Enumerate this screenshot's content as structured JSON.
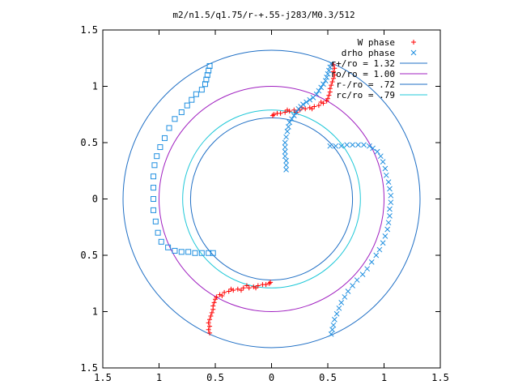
{
  "chart_data": {
    "type": "scatter",
    "title": "m2/n1.5/q1.75/r-+.55-j283/M0.3/512",
    "xlim": [
      -1.5,
      1.5
    ],
    "ylim": [
      -1.5,
      1.5
    ],
    "x_ticks": [
      -1.5,
      -1,
      -0.5,
      0,
      0.5,
      1,
      1.5
    ],
    "y_ticks": [
      -1.5,
      -1,
      -0.5,
      0,
      0.5,
      1,
      1.5
    ],
    "x_tick_labels": [
      "1.5",
      "1",
      "0.5",
      "0",
      "0.5",
      "1",
      "1.5"
    ],
    "y_tick_labels": [
      "1.5",
      "1",
      "0.5",
      "0",
      "0.5",
      "1",
      "1.5"
    ],
    "grid": false,
    "legend_position": "top-right",
    "circles": [
      {
        "label": "r+/ro = 1.32",
        "radius": 1.32,
        "color": "#1f6fc5"
      },
      {
        "label": "ro/ro = 1.00",
        "radius": 1.0,
        "color": "#a020c0"
      },
      {
        "label": "r-/ro = .72",
        "radius": 0.72,
        "color": "#1f6fc5"
      },
      {
        "label": "rc/ro = .79",
        "radius": 0.79,
        "color": "#20c8d8"
      }
    ],
    "series": [
      {
        "name": "W phase",
        "marker": "plus",
        "color": "#ff0000",
        "points": [
          [
            0.55,
            1.19
          ],
          [
            0.56,
            1.16
          ],
          [
            0.55,
            1.13
          ],
          [
            0.56,
            1.1
          ],
          [
            0.55,
            1.07
          ],
          [
            0.54,
            1.04
          ],
          [
            0.53,
            1.01
          ],
          [
            0.52,
            0.98
          ],
          [
            0.52,
            0.95
          ],
          [
            0.51,
            0.92
          ],
          [
            0.5,
            0.89
          ],
          [
            0.49,
            0.87
          ],
          [
            0.46,
            0.85
          ],
          [
            0.42,
            0.83
          ],
          [
            0.38,
            0.82
          ],
          [
            0.34,
            0.81
          ],
          [
            0.3,
            0.8
          ],
          [
            0.25,
            0.79
          ],
          [
            0.2,
            0.79
          ],
          [
            0.16,
            0.78
          ],
          [
            0.12,
            0.77
          ],
          [
            0.08,
            0.76
          ],
          [
            0.05,
            0.76
          ],
          [
            0.02,
            0.75
          ],
          [
            0.01,
            0.74
          ],
          [
            0.44,
            0.86
          ],
          [
            0.36,
            0.8
          ],
          [
            0.27,
            0.81
          ],
          [
            0.22,
            0.77
          ],
          [
            0.14,
            0.79
          ],
          [
            -0.55,
            -1.19
          ],
          [
            -0.56,
            -1.16
          ],
          [
            -0.55,
            -1.13
          ],
          [
            -0.56,
            -1.1
          ],
          [
            -0.55,
            -1.07
          ],
          [
            -0.54,
            -1.04
          ],
          [
            -0.53,
            -1.01
          ],
          [
            -0.52,
            -0.98
          ],
          [
            -0.52,
            -0.95
          ],
          [
            -0.51,
            -0.92
          ],
          [
            -0.5,
            -0.89
          ],
          [
            -0.49,
            -0.87
          ],
          [
            -0.46,
            -0.85
          ],
          [
            -0.42,
            -0.83
          ],
          [
            -0.38,
            -0.82
          ],
          [
            -0.34,
            -0.81
          ],
          [
            -0.3,
            -0.8
          ],
          [
            -0.25,
            -0.79
          ],
          [
            -0.2,
            -0.79
          ],
          [
            -0.16,
            -0.78
          ],
          [
            -0.12,
            -0.77
          ],
          [
            -0.08,
            -0.76
          ],
          [
            -0.05,
            -0.76
          ],
          [
            -0.02,
            -0.75
          ],
          [
            -0.01,
            -0.74
          ],
          [
            -0.44,
            -0.86
          ],
          [
            -0.36,
            -0.8
          ],
          [
            -0.27,
            -0.81
          ],
          [
            -0.22,
            -0.77
          ],
          [
            -0.14,
            -0.79
          ]
        ]
      },
      {
        "name": "drho phase",
        "marker": "cross",
        "color": "#1f8fe0",
        "points": [
          [
            0.53,
            1.2
          ],
          [
            0.52,
            1.17
          ],
          [
            0.51,
            1.14
          ],
          [
            0.5,
            1.11
          ],
          [
            0.49,
            1.08
          ],
          [
            0.48,
            1.05
          ],
          [
            0.46,
            1.02
          ],
          [
            0.44,
            0.99
          ],
          [
            0.42,
            0.96
          ],
          [
            0.4,
            0.93
          ],
          [
            0.37,
            0.9
          ],
          [
            0.34,
            0.88
          ],
          [
            0.31,
            0.86
          ],
          [
            0.28,
            0.84
          ],
          [
            0.26,
            0.82
          ],
          [
            0.24,
            0.8
          ],
          [
            0.22,
            0.77
          ],
          [
            0.2,
            0.74
          ],
          [
            0.18,
            0.71
          ],
          [
            0.16,
            0.68
          ],
          [
            0.15,
            0.64
          ],
          [
            0.14,
            0.6
          ],
          [
            0.13,
            0.55
          ],
          [
            0.12,
            0.5
          ],
          [
            0.12,
            0.46
          ],
          [
            0.12,
            0.42
          ],
          [
            0.12,
            0.38
          ],
          [
            0.13,
            0.34
          ],
          [
            0.13,
            0.3
          ],
          [
            0.13,
            0.26
          ],
          [
            0.52,
            0.47
          ],
          [
            0.57,
            0.47
          ],
          [
            0.62,
            0.47
          ],
          [
            0.67,
            0.48
          ],
          [
            0.72,
            0.48
          ],
          [
            0.77,
            0.48
          ],
          [
            0.82,
            0.48
          ],
          [
            0.87,
            0.47
          ],
          [
            0.9,
            0.45
          ],
          [
            0.94,
            0.42
          ],
          [
            0.97,
            0.38
          ],
          [
            0.99,
            0.33
          ],
          [
            1.01,
            0.27
          ],
          [
            1.02,
            0.21
          ],
          [
            1.04,
            0.15
          ],
          [
            1.05,
            0.09
          ],
          [
            1.06,
            0.03
          ],
          [
            1.06,
            -0.03
          ],
          [
            1.05,
            -0.09
          ],
          [
            1.05,
            -0.15
          ],
          [
            1.04,
            -0.21
          ],
          [
            1.03,
            -0.27
          ],
          [
            1.01,
            -0.33
          ],
          [
            0.99,
            -0.39
          ],
          [
            0.96,
            -0.45
          ],
          [
            0.93,
            -0.5
          ],
          [
            0.89,
            -0.56
          ],
          [
            0.85,
            -0.62
          ],
          [
            0.81,
            -0.67
          ],
          [
            0.76,
            -0.72
          ],
          [
            0.72,
            -0.77
          ],
          [
            0.68,
            -0.82
          ],
          [
            0.65,
            -0.87
          ],
          [
            0.62,
            -0.92
          ],
          [
            0.6,
            -0.97
          ],
          [
            0.58,
            -1.02
          ],
          [
            0.56,
            -1.07
          ],
          [
            0.55,
            -1.12
          ],
          [
            0.54,
            -1.16
          ],
          [
            0.53,
            -1.2
          ]
        ]
      },
      {
        "name": "",
        "marker": "square",
        "color": "#1f8fe0",
        "points": [
          [
            -0.55,
            1.18
          ],
          [
            -0.56,
            1.14
          ],
          [
            -0.57,
            1.1
          ],
          [
            -0.58,
            1.06
          ],
          [
            -0.59,
            1.02
          ],
          [
            -0.62,
            0.97
          ],
          [
            -0.67,
            0.93
          ],
          [
            -0.71,
            0.88
          ],
          [
            -0.75,
            0.83
          ],
          [
            -0.8,
            0.77
          ],
          [
            -0.86,
            0.71
          ],
          [
            -0.91,
            0.63
          ],
          [
            -0.95,
            0.54
          ],
          [
            -0.99,
            0.46
          ],
          [
            -1.02,
            0.38
          ],
          [
            -1.04,
            0.3
          ],
          [
            -1.05,
            0.2
          ],
          [
            -1.05,
            0.1
          ],
          [
            -1.05,
            0.0
          ],
          [
            -1.05,
            -0.1
          ],
          [
            -1.03,
            -0.2
          ],
          [
            -1.01,
            -0.3
          ],
          [
            -0.98,
            -0.38
          ],
          [
            -0.92,
            -0.43
          ],
          [
            -0.86,
            -0.46
          ],
          [
            -0.8,
            -0.47
          ],
          [
            -0.74,
            -0.47
          ],
          [
            -0.68,
            -0.48
          ],
          [
            -0.62,
            -0.48
          ],
          [
            -0.56,
            -0.48
          ],
          [
            -0.52,
            -0.48
          ]
        ]
      }
    ]
  }
}
